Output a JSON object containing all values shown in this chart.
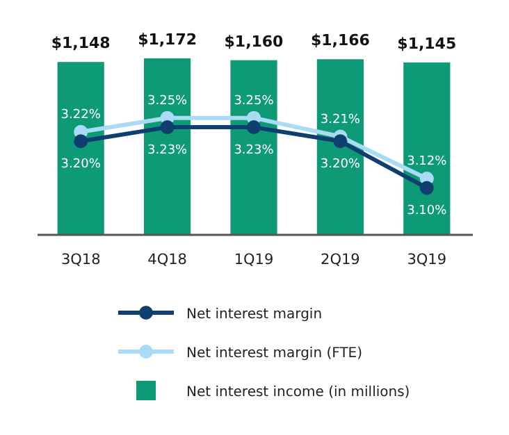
{
  "chart_data": {
    "type": "bar",
    "categories": [
      "3Q18",
      "4Q18",
      "1Q19",
      "2Q19",
      "3Q19"
    ],
    "legend": "bottom",
    "marker": "circle",
    "series": [
      {
        "name": "Net interest margin",
        "type": "line",
        "axis": "y2",
        "color": "#0f3f6e",
        "values": [
          3.2,
          3.23,
          3.23,
          3.2,
          3.1
        ],
        "value_labels": [
          "3.20%",
          "3.23%",
          "3.23%",
          "3.20%",
          "3.10%"
        ]
      },
      {
        "name": "Net interest margin (FTE)",
        "type": "line",
        "axis": "y2",
        "color": "#a9dcf4",
        "values": [
          3.22,
          3.25,
          3.25,
          3.21,
          3.12
        ],
        "value_labels": [
          "3.22%",
          "3.25%",
          "3.25%",
          "3.21%",
          "3.12%"
        ]
      },
      {
        "name": "Net interest income (in millions)",
        "color": "#0e9a76",
        "values": [
          1148,
          1172,
          1160,
          1166,
          1145
        ],
        "value_labels": [
          "$1,148",
          "$1,172",
          "$1,160",
          "$1,166",
          "$1,145"
        ]
      }
    ]
  }
}
